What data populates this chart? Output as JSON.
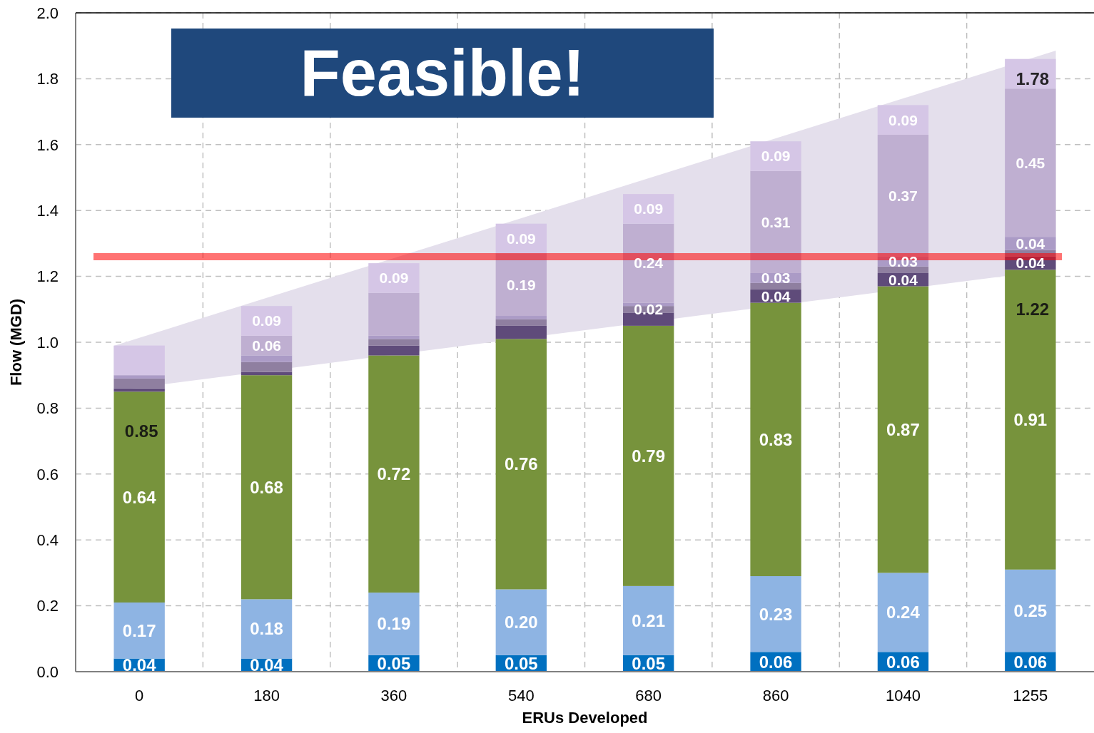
{
  "chart_data": {
    "type": "bar",
    "stacked": true,
    "xlabel": "ERUs Developed",
    "ylabel": "Flow (MGD)",
    "categories": [
      "0",
      "180",
      "360",
      "540",
      "680",
      "860",
      "1040",
      "1255"
    ],
    "ylim": [
      0,
      2
    ],
    "yticks": [
      {
        "value": 0,
        "label": "0.0"
      },
      {
        "value": 0.2,
        "label": "0.2"
      },
      {
        "value": 0.4,
        "label": "0.4"
      },
      {
        "value": 0.6,
        "label": "0.6"
      },
      {
        "value": 0.8,
        "label": "0.8"
      },
      {
        "value": 1,
        "label": "1.0"
      },
      {
        "value": 1.2,
        "label": "1.2"
      },
      {
        "value": 1.4,
        "label": "1.4"
      },
      {
        "value": 1.6,
        "label": "1.6"
      },
      {
        "value": 1.8,
        "label": "1.8"
      },
      {
        "value": 2,
        "label": "2.0"
      }
    ],
    "grid": true,
    "series": [
      {
        "color": "#0070c0",
        "values": [
          0.04,
          0.04,
          0.05,
          0.05,
          0.05,
          0.06,
          0.06,
          0.06
        ],
        "value_labels": [
          "0.04",
          "0.04",
          "0.05",
          "0.05",
          "0.05",
          "0.06",
          "0.06",
          "0.06"
        ]
      },
      {
        "color": "#8eb4e3",
        "values": [
          0.17,
          0.18,
          0.19,
          0.2,
          0.21,
          0.23,
          0.24,
          0.25
        ],
        "value_labels": [
          "0.17",
          "0.18",
          "0.19",
          "0.20",
          "0.21",
          "0.23",
          "0.24",
          "0.25"
        ]
      },
      {
        "color": "#77933c",
        "values": [
          0.64,
          0.68,
          0.72,
          0.76,
          0.79,
          0.83,
          0.87,
          0.91
        ],
        "value_labels": [
          "0.64",
          "0.68",
          "0.72",
          "0.76",
          "0.79",
          "0.83",
          "0.87",
          "0.91"
        ]
      },
      {
        "color": "#5f4b7a",
        "values": [
          0.01,
          0.01,
          0.03,
          0.04,
          0.04,
          0.04,
          0.04,
          0.04
        ],
        "value_labels": [
          null,
          null,
          null,
          null,
          null,
          "0.04",
          "0.04",
          "0.04"
        ]
      },
      {
        "color": "#8f7fa0",
        "values": [
          0.03,
          0.03,
          0.02,
          0.02,
          0.02,
          0.02,
          0.02,
          0.02
        ],
        "value_labels": [
          null,
          null,
          null,
          null,
          "0.02",
          null,
          null,
          null
        ]
      },
      {
        "color": "#ab9bc6",
        "values": [
          0.01,
          0.02,
          0.01,
          0.01,
          0.01,
          0.03,
          0.03,
          0.04
        ],
        "value_labels": [
          null,
          null,
          null,
          null,
          null,
          "0.03",
          "0.03",
          "0.04"
        ]
      },
      {
        "color": "#bfafd1",
        "values": [
          0,
          0.06,
          0.13,
          0.19,
          0.24,
          0.31,
          0.37,
          0.45
        ],
        "value_labels": [
          null,
          "0.06",
          null,
          "0.19",
          "0.24",
          "0.31",
          "0.37",
          "0.45"
        ]
      },
      {
        "color": "#d5c6e6",
        "values": [
          0.09,
          0.09,
          0.09,
          0.09,
          0.09,
          0.09,
          0.09,
          0.09
        ],
        "value_labels": [
          null,
          "0.09",
          "0.09",
          "0.09",
          "0.09",
          "0.09",
          "0.09",
          null
        ]
      }
    ],
    "ref_lines": [
      {
        "axis": "y",
        "value": 1.26,
        "color": "#ff0000"
      }
    ],
    "annotations": [
      "Feasible!",
      {
        "text": "0.85",
        "x": "0",
        "y": 0.85
      },
      {
        "text": "1.22",
        "x": "1255",
        "y": 1.22
      },
      "1.78"
    ]
  }
}
